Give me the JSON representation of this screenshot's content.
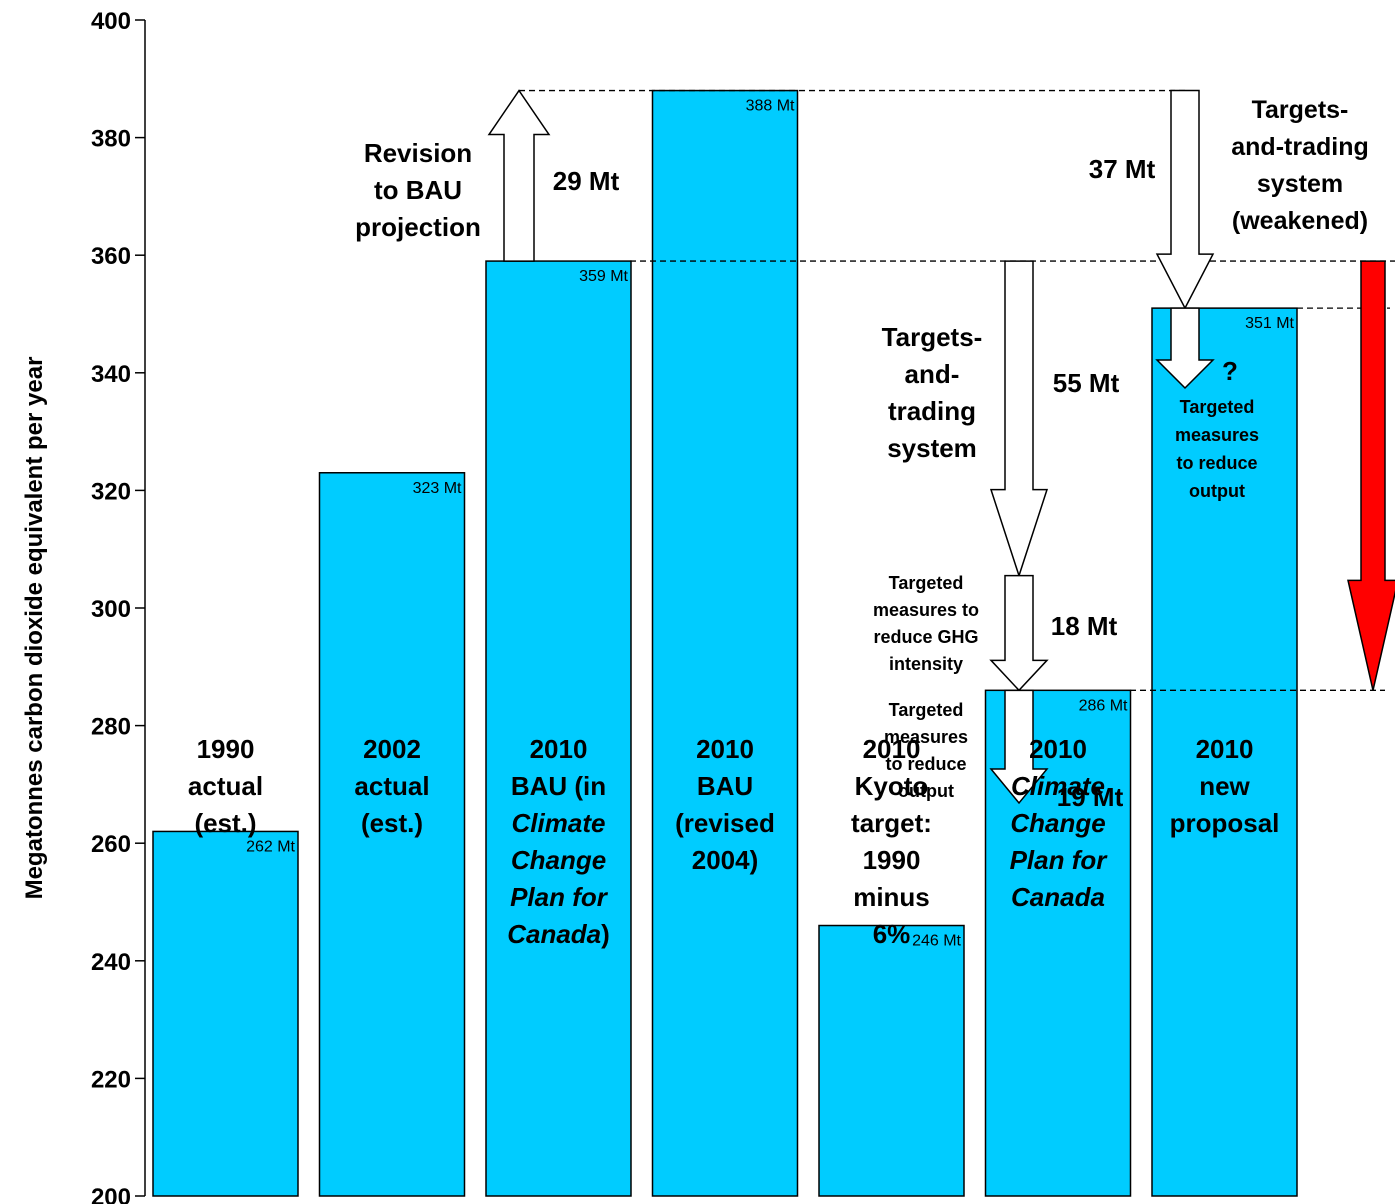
{
  "chart_data": {
    "type": "bar",
    "title": "",
    "ylabel": "Megatonnes carbon dioxide equivalent per year",
    "ylim": [
      200,
      400
    ],
    "yticks": [
      200,
      220,
      240,
      260,
      280,
      300,
      320,
      340,
      360,
      380,
      400
    ],
    "bar_color": "#00CCFF",
    "categories": [
      [
        "1990",
        "actual",
        "(est.)"
      ],
      [
        "2002",
        "actual",
        "(est.)"
      ],
      [
        "2010",
        "BAU (in",
        "Climate",
        "Change",
        "Plan for",
        "Canada)"
      ],
      [
        "2010",
        "BAU",
        "(revised",
        "2004)"
      ],
      [
        "2010",
        "Kyoto",
        "target:",
        "1990",
        "minus",
        "6%"
      ],
      [
        "2010",
        "Climate",
        "Change",
        "Plan for",
        "Canada"
      ],
      [
        "2010",
        "new",
        "proposal"
      ]
    ],
    "values": [
      262,
      323,
      359,
      388,
      246,
      286,
      351
    ],
    "value_labels": [
      "262 Mt",
      "323 Mt",
      "359 Mt",
      "388 Mt",
      "246 Mt",
      "286 Mt",
      "351 Mt"
    ],
    "annotations": {
      "revision_label": [
        "Revision",
        "to BAU",
        "projection"
      ],
      "revision_amount": "29 Mt",
      "ttrade_label": [
        "Targets-",
        "and-",
        "trading",
        "system"
      ],
      "ttrade_amount": "55 Mt",
      "intensity_label": [
        "Targeted",
        "measures to",
        "reduce GHG",
        "intensity"
      ],
      "intensity_amount": "18 Mt",
      "output_label": [
        "Targeted",
        "measures",
        "to reduce",
        "output"
      ],
      "output_amount": "19 Mt",
      "weakened_label": [
        "Targets-",
        "and-trading",
        "system",
        "(weakened)"
      ],
      "weakened_amount": "37 Mt",
      "question_mark": "?",
      "new_output_label": [
        "Targeted",
        "measures",
        "to reduce",
        "output"
      ],
      "red_arrow_color": "#FF0000"
    }
  }
}
